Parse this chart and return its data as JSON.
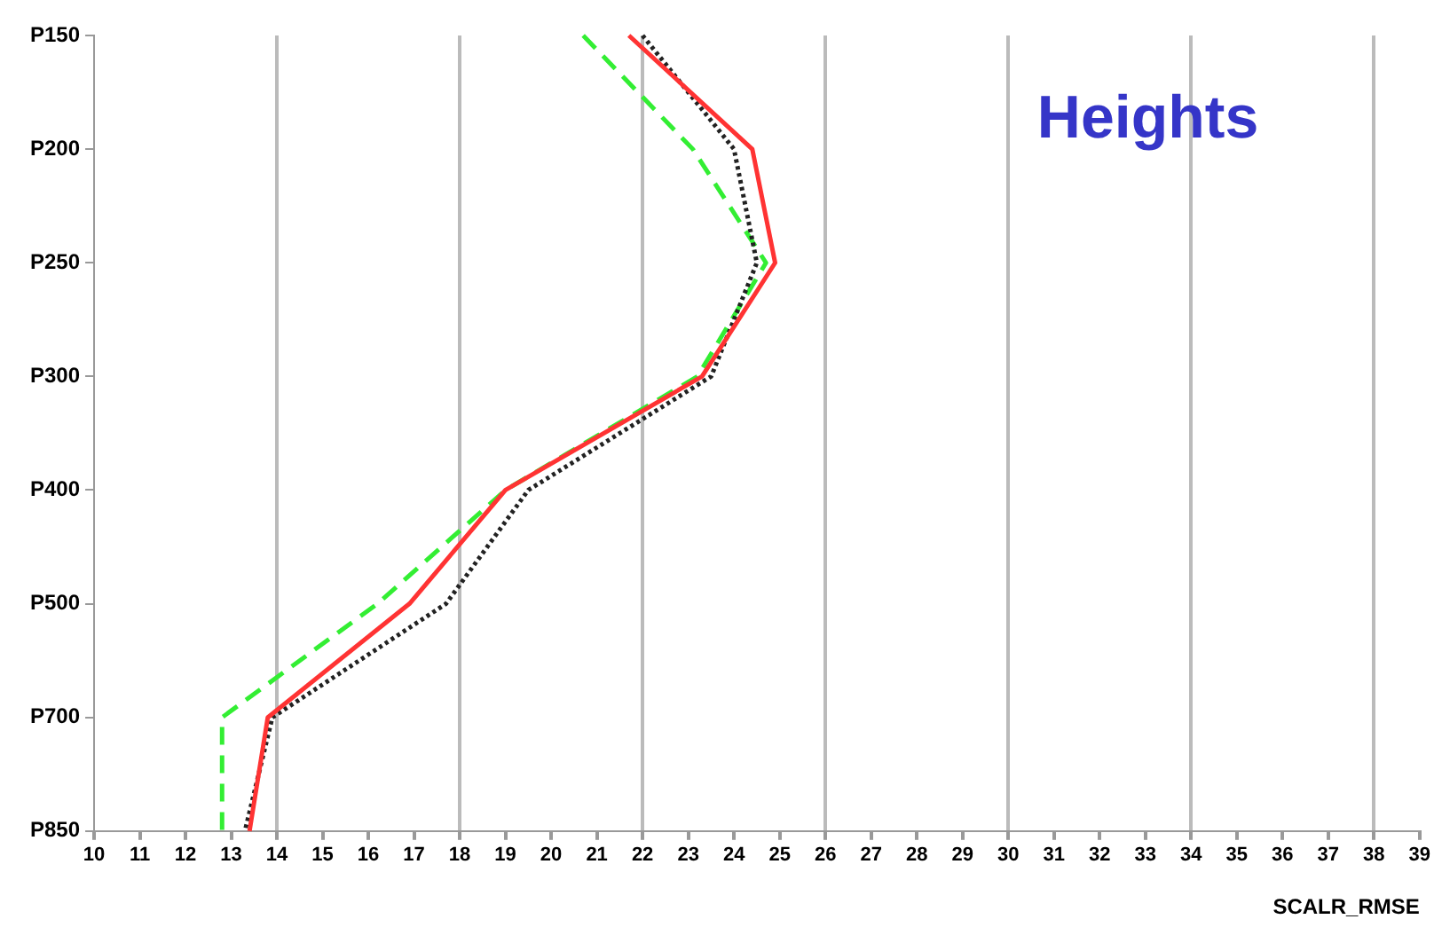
{
  "chart_data": {
    "type": "line",
    "orientation": "horizontal",
    "xlabel": "SCALR_RMSE",
    "annotations": [
      "Heights"
    ],
    "categories": [
      "P150",
      "P200",
      "P250",
      "P300",
      "P400",
      "P500",
      "P700",
      "P850"
    ],
    "series": [
      {
        "color": "#ff3333",
        "line_style": "solid",
        "values": [
          21.7,
          24.4,
          24.9,
          23.3,
          19.0,
          16.9,
          13.8,
          13.4
        ]
      },
      {
        "color": "#222222",
        "line_style": "dotted",
        "values": [
          22.0,
          24.0,
          24.5,
          23.5,
          19.5,
          17.7,
          13.9,
          13.3
        ]
      },
      {
        "color": "#33ee33",
        "line_style": "dashed",
        "values": [
          20.7,
          23.1,
          24.7,
          23.2,
          19.0,
          16.2,
          12.8,
          12.8
        ]
      }
    ],
    "xlim": [
      10,
      39
    ],
    "xticks": [
      10,
      11,
      12,
      13,
      14,
      15,
      16,
      17,
      18,
      19,
      20,
      21,
      22,
      23,
      24,
      25,
      26,
      27,
      28,
      29,
      30,
      31,
      32,
      33,
      34,
      35,
      36,
      37,
      38,
      39
    ],
    "grid": "x",
    "legend": false,
    "marker": "none"
  }
}
